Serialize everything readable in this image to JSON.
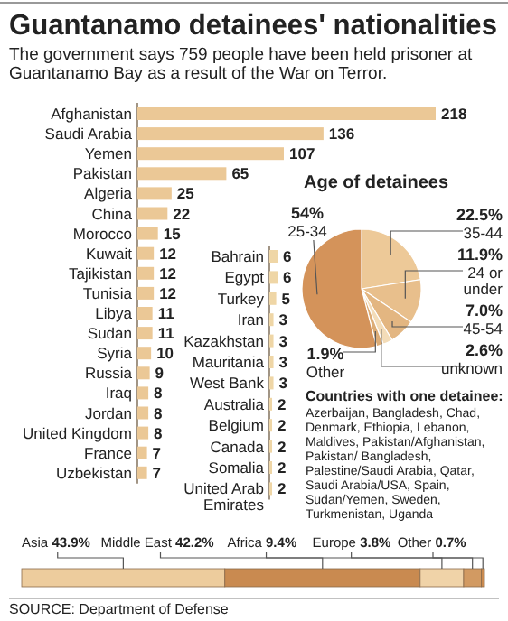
{
  "chart_data": [
    {
      "type": "bar",
      "orientation": "horizontal",
      "title": "Guantanamo detainees' nationalities",
      "subtitle": "The government says 759 people have been held prisoner at Guantanamo Bay as a result of the War on Terror.",
      "categories": [
        "Afghanistan",
        "Saudi Arabia",
        "Yemen",
        "Pakistan",
        "Algeria",
        "China",
        "Morocco",
        "Kuwait",
        "Tajikistan",
        "Tunisia",
        "Libya",
        "Sudan",
        "Syria",
        "Russia",
        "Iraq",
        "Jordan",
        "United Kingdom",
        "France",
        "Uzbekistan"
      ],
      "values": [
        218,
        136,
        107,
        65,
        25,
        22,
        15,
        12,
        12,
        12,
        11,
        11,
        10,
        9,
        8,
        8,
        8,
        7,
        7
      ],
      "color": "#ebc896",
      "data_labels": true,
      "annotations": [
        "SOURCE: Department of Defense"
      ]
    },
    {
      "type": "bar",
      "orientation": "horizontal",
      "categories": [
        "Bahrain",
        "Egypt",
        "Turkey",
        "Iran",
        "Kazakhstan",
        "Mauritania",
        "West Bank",
        "Australia",
        "Belgium",
        "Canada",
        "Somalia",
        "United Arab Emirates"
      ],
      "values": [
        6,
        6,
        5,
        3,
        3,
        3,
        3,
        2,
        2,
        2,
        2,
        2
      ],
      "color": "#efd6a6",
      "data_labels": true
    },
    {
      "type": "pie",
      "title": "Age of detainees",
      "categories": [
        "35-44",
        "24 or under",
        "45-54",
        "unknown",
        "Other",
        "25-34"
      ],
      "values": [
        22.5,
        11.9,
        7.0,
        2.6,
        1.9,
        54
      ],
      "value_labels": [
        "22.5%",
        "11.9%",
        "7.0%",
        "2.6%",
        "1.9%",
        "54%"
      ],
      "colors": [
        "#edc998",
        "#e8bf8c",
        "#e3b681",
        "#f3dcb8",
        "#dcac76",
        "#d4935a"
      ]
    },
    {
      "type": "other",
      "title": "Countries with one detainee:",
      "annotations": [
        "Azerbaijan, Bangladesh, Chad, Denmark, Ethiopia, Lebanon, Maldives, Pakistan/Afghanistan, Pakistan/ Bangladesh, Palestine/Saudi Arabia, Qatar, Saudi Arabia/USA, Spain, Sudan/Yemen, Sweden, Turkmenistan, Uganda"
      ]
    },
    {
      "type": "bar",
      "orientation": "horizontal",
      "stacked": true,
      "categories": [
        null
      ],
      "xlim": [
        0,
        100
      ],
      "series": [
        {
          "name": "Asia",
          "color": "#edcc9d",
          "values": [
            43.9
          ],
          "value_labels": [
            "43.9%"
          ]
        },
        {
          "name": "Middle East",
          "color": "#c98a50",
          "values": [
            42.2
          ],
          "value_labels": [
            "42.2%"
          ]
        },
        {
          "name": "Africa",
          "color": "#f0d3a8",
          "values": [
            9.4
          ],
          "value_labels": [
            "9.4%"
          ]
        },
        {
          "name": "Europe",
          "color": "#d29a62",
          "values": [
            3.8
          ],
          "value_labels": [
            "3.8%"
          ]
        },
        {
          "name": "Other",
          "color": "#c98a50",
          "values": [
            0.7
          ],
          "value_labels": [
            "0.7%"
          ]
        }
      ]
    }
  ]
}
